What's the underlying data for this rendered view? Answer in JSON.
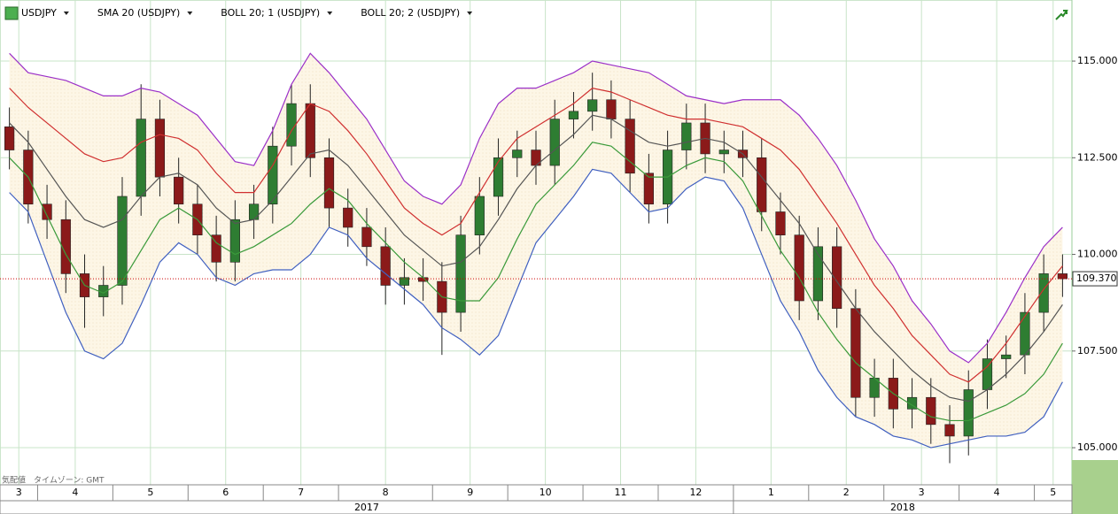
{
  "chart_data": {
    "type": "candlestick",
    "categories": [
      "3",
      null,
      "4",
      null,
      null,
      null,
      "5",
      null,
      null,
      null,
      "6",
      null,
      null,
      null,
      "7",
      null,
      null,
      null,
      "8",
      null,
      null,
      null,
      null,
      "9",
      null,
      null,
      null,
      "10",
      null,
      null,
      null,
      "11",
      null,
      null,
      null,
      "12",
      null,
      null,
      null,
      "1",
      null,
      null,
      null,
      "2",
      null,
      null,
      null,
      "3",
      null,
      null,
      null,
      "4",
      null,
      null,
      null,
      "5",
      null
    ],
    "years": [
      "2017",
      "2018"
    ],
    "candles": {
      "name": "USDJPY",
      "up_color": "#2e7d32",
      "down_color": "#8b1a1a",
      "open": [
        113.3,
        112.7,
        111.3,
        110.9,
        109.5,
        108.9,
        109.2,
        111.5,
        113.5,
        112.0,
        111.3,
        110.5,
        109.8,
        110.9,
        111.3,
        112.8,
        113.9,
        112.5,
        111.2,
        110.7,
        110.2,
        109.2,
        109.4,
        109.3,
        108.5,
        110.5,
        111.5,
        112.5,
        112.7,
        112.3,
        113.5,
        113.7,
        114.0,
        113.5,
        112.1,
        111.3,
        112.7,
        113.4,
        112.6,
        112.7,
        112.5,
        111.1,
        110.5,
        108.8,
        110.2,
        108.6,
        106.3,
        106.8,
        106.0,
        106.3,
        105.6,
        105.3,
        106.5,
        107.3,
        107.4,
        108.5,
        109.5
      ],
      "high": [
        113.8,
        113.2,
        111.8,
        111.4,
        110.0,
        109.7,
        112.0,
        114.4,
        114.0,
        112.5,
        111.8,
        111.0,
        111.4,
        111.8,
        113.3,
        114.4,
        114.4,
        113.0,
        111.7,
        111.2,
        110.7,
        109.9,
        109.9,
        109.8,
        111.0,
        112.0,
        113.0,
        113.2,
        113.2,
        114.0,
        114.2,
        114.7,
        114.5,
        114.0,
        112.6,
        113.2,
        113.9,
        113.9,
        113.2,
        113.2,
        113.0,
        111.6,
        111.0,
        110.7,
        110.7,
        109.1,
        107.3,
        107.3,
        106.8,
        106.8,
        106.1,
        107.0,
        107.8,
        107.9,
        109.0,
        110.0,
        110.0
      ],
      "low": [
        112.2,
        110.8,
        110.4,
        109.0,
        108.1,
        108.4,
        108.7,
        111.0,
        111.5,
        110.8,
        110.0,
        109.3,
        109.3,
        110.4,
        110.8,
        112.3,
        112.0,
        110.7,
        110.2,
        109.7,
        108.7,
        108.7,
        108.8,
        107.4,
        108.0,
        110.0,
        111.0,
        112.0,
        111.8,
        111.8,
        113.0,
        113.2,
        113.0,
        111.6,
        110.8,
        110.8,
        112.2,
        112.1,
        112.1,
        112.0,
        110.6,
        110.0,
        108.3,
        108.3,
        108.1,
        105.8,
        105.8,
        105.5,
        105.5,
        105.1,
        104.6,
        104.8,
        106.0,
        106.8,
        106.9,
        108.0,
        108.9
      ],
      "close": [
        112.7,
        111.3,
        110.9,
        109.5,
        108.9,
        109.2,
        111.5,
        113.5,
        112.0,
        111.3,
        110.5,
        109.8,
        110.9,
        111.3,
        112.8,
        113.9,
        112.5,
        111.2,
        110.7,
        110.2,
        109.2,
        109.4,
        109.3,
        108.5,
        110.5,
        111.5,
        112.5,
        112.7,
        112.3,
        113.5,
        113.7,
        114.0,
        113.5,
        112.1,
        111.3,
        112.7,
        113.4,
        112.6,
        112.7,
        112.5,
        111.1,
        110.5,
        108.8,
        110.2,
        108.6,
        106.3,
        106.8,
        106.0,
        106.3,
        105.6,
        105.3,
        106.5,
        107.3,
        107.4,
        108.5,
        109.5,
        109.37
      ]
    },
    "series": [
      {
        "name": "SMA 20 (USDJPY)",
        "lines": [
          {
            "color": "#555555",
            "values": [
              113.4,
              112.9,
              112.2,
              111.5,
              110.9,
              110.7,
              110.9,
              111.5,
              112.0,
              112.1,
              111.8,
              111.2,
              110.8,
              110.9,
              111.4,
              112.0,
              112.6,
              112.7,
              112.3,
              111.7,
              111.1,
              110.5,
              110.1,
              109.7,
              109.8,
              110.2,
              110.9,
              111.7,
              112.3,
              112.7,
              113.1,
              113.6,
              113.5,
              113.2,
              112.9,
              112.8,
              112.9,
              113.0,
              112.9,
              112.6,
              112.0,
              111.4,
              110.8,
              110.0,
              109.3,
              108.6,
              108.0,
              107.5,
              107.0,
              106.6,
              106.3,
              106.2,
              106.5,
              106.9,
              107.4,
              108.0,
              108.7
            ]
          }
        ]
      },
      {
        "name": "BOLL 20; 1 (USDJPY)",
        "lines": [
          {
            "color": "#d03030",
            "values": [
              114.3,
              113.8,
              113.4,
              113.0,
              112.6,
              112.4,
              112.5,
              112.9,
              113.1,
              113.0,
              112.7,
              112.1,
              111.6,
              111.6,
              112.3,
              113.2,
              113.9,
              113.7,
              113.2,
              112.6,
              111.9,
              111.2,
              110.8,
              110.5,
              110.8,
              111.6,
              112.4,
              113.0,
              113.3,
              113.6,
              113.9,
              114.3,
              114.2,
              114.0,
              113.8,
              113.6,
              113.5,
              113.5,
              113.4,
              113.3,
              113.0,
              112.7,
              112.2,
              111.5,
              110.8,
              110.0,
              109.2,
              108.6,
              107.9,
              107.4,
              106.9,
              106.7,
              107.1,
              107.7,
              108.4,
              109.1,
              109.7
            ]
          },
          {
            "color": "#3a9a3a",
            "values": [
              112.5,
              112.0,
              111.0,
              110.0,
              109.2,
              109.0,
              109.3,
              110.1,
              110.9,
              111.2,
              110.9,
              110.3,
              110.0,
              110.2,
              110.5,
              110.8,
              111.3,
              111.7,
              111.4,
              110.8,
              110.3,
              109.8,
              109.4,
              108.9,
              108.8,
              108.8,
              109.4,
              110.4,
              111.3,
              111.8,
              112.3,
              112.9,
              112.8,
              112.4,
              112.0,
              112.0,
              112.3,
              112.5,
              112.4,
              111.9,
              111.0,
              110.1,
              109.4,
              108.5,
              107.8,
              107.2,
              106.8,
              106.4,
              106.1,
              105.8,
              105.7,
              105.7,
              105.9,
              106.1,
              106.4,
              106.9,
              107.7
            ]
          }
        ]
      },
      {
        "name": "BOLL 20; 2 (USDJPY)",
        "lines": [
          {
            "color": "#9b30c8",
            "values": [
              115.2,
              114.7,
              114.6,
              114.5,
              114.3,
              114.1,
              114.1,
              114.3,
              114.2,
              113.9,
              113.6,
              113.0,
              112.4,
              112.3,
              113.2,
              114.4,
              115.2,
              114.7,
              114.1,
              113.5,
              112.7,
              111.9,
              111.5,
              111.3,
              111.8,
              113.0,
              113.9,
              114.3,
              114.3,
              114.5,
              114.7,
              115.0,
              114.9,
              114.8,
              114.7,
              114.4,
              114.1,
              114.0,
              113.9,
              114.0,
              114.0,
              114.0,
              113.6,
              113.0,
              112.3,
              111.4,
              110.4,
              109.7,
              108.8,
              108.2,
              107.5,
              107.2,
              107.7,
              108.5,
              109.4,
              110.2,
              110.7
            ]
          },
          {
            "color": "#4060c0",
            "values": [
              111.6,
              111.1,
              109.8,
              108.5,
              107.5,
              107.3,
              107.7,
              108.7,
              109.8,
              110.3,
              110.0,
              109.4,
              109.2,
              109.5,
              109.6,
              109.6,
              110.0,
              110.7,
              110.5,
              109.9,
              109.5,
              109.1,
              108.7,
              108.1,
              107.8,
              107.4,
              107.9,
              109.1,
              110.3,
              110.9,
              111.5,
              112.2,
              112.1,
              111.6,
              111.1,
              111.2,
              111.7,
              112.0,
              111.9,
              111.2,
              110.0,
              108.8,
              108.0,
              107.0,
              106.3,
              105.8,
              105.6,
              105.3,
              105.2,
              105.0,
              105.1,
              105.2,
              105.3,
              105.3,
              105.4,
              105.8,
              106.7
            ]
          }
        ]
      }
    ],
    "last_price": {
      "value": 109.37,
      "label": "109.370"
    },
    "ylim": [
      104.04,
      116.58
    ],
    "yticks": [
      {
        "value": 105,
        "label": "105.000"
      },
      {
        "value": 107.5,
        "label": "107.500"
      },
      {
        "value": 110,
        "label": "110.000"
      },
      {
        "value": 112.5,
        "label": "112.500"
      },
      {
        "value": 115,
        "label": "115.000"
      }
    ],
    "grid": true,
    "footer": "気配値　タイムゾーン: GMT"
  }
}
